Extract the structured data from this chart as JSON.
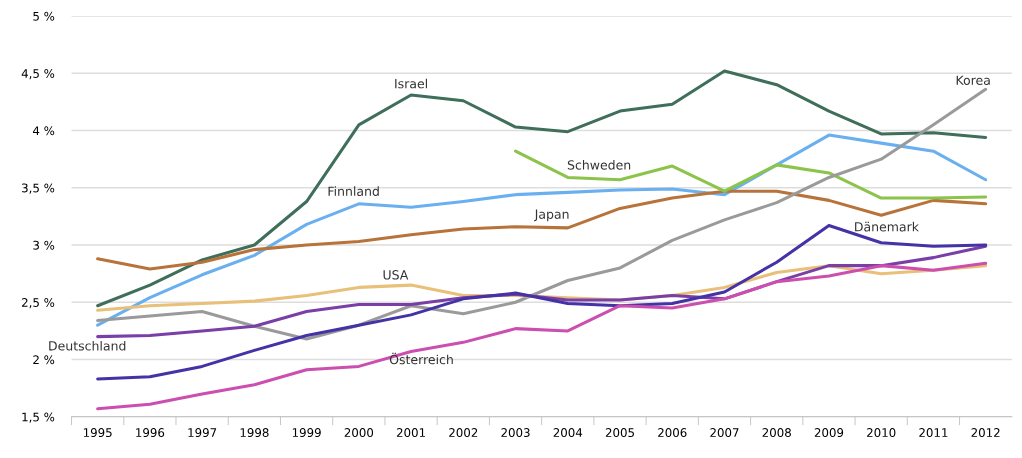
{
  "chart_data": {
    "type": "line",
    "categories": [
      "1995",
      "1996",
      "1997",
      "1998",
      "1999",
      "2000",
      "2001",
      "2002",
      "2003",
      "2004",
      "2005",
      "2006",
      "2007",
      "2008",
      "2009",
      "2010",
      "2011",
      "2012"
    ],
    "ylim": [
      1.5,
      5
    ],
    "yticks": [
      {
        "value": 1.5,
        "label": "1,5 %"
      },
      {
        "value": 2,
        "label": "2 %"
      },
      {
        "value": 2.5,
        "label": "2,5 %"
      },
      {
        "value": 3,
        "label": "3 %"
      },
      {
        "value": 3.5,
        "label": "3,5 %"
      },
      {
        "value": 4,
        "label": "4 %"
      },
      {
        "value": 4.5,
        "label": "4,5 %"
      },
      {
        "value": 5,
        "label": "5 %"
      }
    ],
    "grid": "y",
    "legend": false,
    "marker": "none",
    "line_style": "solid",
    "series": [
      {
        "name": "Israel",
        "color": "#3f6e5a",
        "values": [
          2.47,
          2.65,
          2.87,
          3.0,
          3.38,
          4.05,
          4.31,
          4.26,
          4.03,
          3.99,
          4.17,
          4.23,
          4.52,
          4.4,
          4.17,
          3.97,
          3.98,
          3.94
        ]
      },
      {
        "name": "Finnland",
        "color": "#6ab0f0",
        "values": [
          2.3,
          2.54,
          2.74,
          2.91,
          3.18,
          3.36,
          3.33,
          3.38,
          3.44,
          3.46,
          3.48,
          3.49,
          3.44,
          3.7,
          3.96,
          3.89,
          3.82,
          3.57
        ]
      },
      {
        "name": "Japan",
        "color": "#b8733a",
        "values": [
          2.88,
          2.79,
          2.85,
          2.96,
          3.0,
          3.03,
          3.09,
          3.14,
          3.16,
          3.15,
          3.32,
          3.41,
          3.47,
          3.47,
          3.39,
          3.26,
          3.39,
          3.36
        ]
      },
      {
        "name": "Schweden",
        "color": "#8cc34a",
        "values": [
          null,
          null,
          null,
          null,
          null,
          null,
          null,
          null,
          3.82,
          3.59,
          3.57,
          3.69,
          3.47,
          3.7,
          3.63,
          3.41,
          3.41,
          3.42
        ]
      },
      {
        "name": "Korea",
        "color": "#9a9a9a",
        "values": [
          2.34,
          2.38,
          2.42,
          2.29,
          2.18,
          2.3,
          2.47,
          2.4,
          2.5,
          2.69,
          2.8,
          3.04,
          3.22,
          3.37,
          3.59,
          3.75,
          4.05,
          4.36
        ]
      },
      {
        "name": "USA",
        "color": "#e8c07a",
        "values": [
          2.43,
          2.47,
          2.49,
          2.51,
          2.56,
          2.63,
          2.65,
          2.56,
          2.56,
          2.54,
          2.52,
          2.56,
          2.63,
          2.76,
          2.82,
          2.75,
          2.78,
          2.82
        ]
      },
      {
        "name": "Deutschland",
        "color": "#7a3fa6",
        "values": [
          2.2,
          2.21,
          2.25,
          2.29,
          2.42,
          2.48,
          2.48,
          2.54,
          2.57,
          2.52,
          2.52,
          2.56,
          2.53,
          2.68,
          2.82,
          2.82,
          2.89,
          2.99
        ]
      },
      {
        "name": "Dänemark",
        "color": "#4432a6",
        "values": [
          1.83,
          1.85,
          1.94,
          2.08,
          2.21,
          2.3,
          2.39,
          2.53,
          2.58,
          2.49,
          2.47,
          2.49,
          2.59,
          2.85,
          3.17,
          3.02,
          2.99,
          3.0
        ]
      },
      {
        "name": "Österreich",
        "color": "#cc4fb0",
        "values": [
          1.57,
          1.61,
          1.7,
          1.78,
          1.91,
          1.94,
          2.07,
          2.15,
          2.27,
          2.25,
          2.47,
          2.45,
          2.53,
          2.68,
          2.73,
          2.82,
          2.78,
          2.84
        ]
      }
    ]
  }
}
